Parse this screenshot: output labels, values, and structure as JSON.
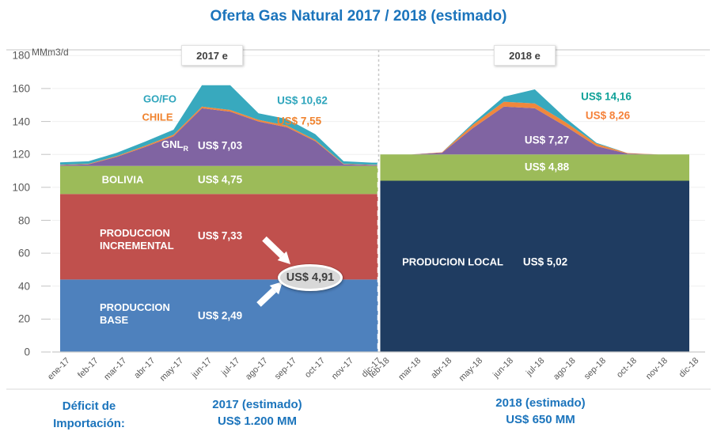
{
  "title": "Oferta Gas Natural 2017 / 2018 (estimado)",
  "y_axis": {
    "unit": "MMm3/d"
  },
  "colors": {
    "title_blue": "#1B74BC",
    "axis_text": "#595959",
    "grid": "#EFEFEF",
    "axis_line": "#C9C9C9",
    "divider_top": "#C8C8C8",
    "divider_dash": "#FFFFFF",
    "callout_bg": "#D8D8D8",
    "callout_text": "#3F3F3F",
    "teal_label_left": "#2EA5BC",
    "teal_label_right": "#0FA198",
    "orange_label_left": "#F0832E",
    "orange_label_right": "#F5823A"
  },
  "chart_data": {
    "type": "area",
    "subtype": "stacked",
    "title": "Oferta Gas Natural 2017 / 2018 (estimado)",
    "unit": "MMm3/d",
    "ylim": [
      0,
      180
    ],
    "ytick_step": 20,
    "grid": true,
    "panels": [
      {
        "tag": "2017 e",
        "x": [
          "ene-17",
          "feb-17",
          "mar-17",
          "abr-17",
          "may-17",
          "jun-17",
          "jul-17",
          "ago-17",
          "sep-17",
          "oct-17",
          "nov-17",
          "dic-17"
        ],
        "series": [
          {
            "key": "base",
            "name": "PRODUCCION BASE",
            "name_lines": [
              "PRODUCCION",
              "BASE"
            ],
            "price": "US$ 2,49",
            "color": "#4E81BD",
            "values": [
              44,
              44,
              44,
              44,
              44,
              44,
              44,
              44,
              44,
              44,
              44,
              44
            ]
          },
          {
            "key": "incremental",
            "name": "PRODUCCION INCREMENTAL",
            "name_lines": [
              "PRODUCCION",
              "INCREMENTAL"
            ],
            "price": "US$ 7,33",
            "color": "#C0504D",
            "values": [
              52,
              52,
              52,
              52,
              52,
              52,
              52,
              52,
              52,
              52,
              52,
              52
            ]
          },
          {
            "key": "bolivia",
            "name": "BOLIVIA",
            "price": "US$ 4,75",
            "color": "#9CBB59",
            "values": [
              17,
              17,
              17,
              17,
              17,
              17,
              17,
              17,
              17,
              17,
              17,
              17
            ]
          },
          {
            "key": "gnl",
            "name": "GNL",
            "name_sub": "R",
            "price": "US$ 7,03",
            "color": "#8064A2",
            "values": [
              0.5,
              1,
              5.5,
              11.5,
              18,
              35,
              33,
              27,
              23.5,
              15,
              1,
              0.5
            ]
          },
          {
            "key": "chile",
            "name": "CHILE",
            "price": "US$ 7,55",
            "color": "#F0873C",
            "values": [
              0.2,
              0.3,
              0.5,
              0.8,
              1,
              1,
              1,
              1,
              1,
              0.8,
              0.3,
              0.2
            ]
          },
          {
            "key": "gofo",
            "name": "GO/FO",
            "price": "US$ 10,62",
            "color": "#38A9BE",
            "values": [
              1.5,
              1.5,
              2,
              2.5,
              3,
              13,
              15,
              4,
              4,
              3.5,
              1.5,
              1.3
            ]
          }
        ],
        "callout": "US$ 4,91"
      },
      {
        "tag": "2018 e",
        "x": [
          "feb-18",
          "mar-18",
          "abr-18",
          "may-18",
          "jun-18",
          "jul-18",
          "ago-18",
          "sep-18",
          "oct-18",
          "nov-18",
          "dic-18"
        ],
        "series": [
          {
            "key": "local",
            "name": "PRODUCION LOCAL",
            "price": "US$ 5,02",
            "color": "#1F3C61",
            "values": [
              104,
              104,
              104,
              104,
              104,
              104,
              104,
              104,
              104,
              104,
              104
            ]
          },
          {
            "key": "bolivia",
            "name": "BOLIVIA",
            "price": "US$ 4,88",
            "color": "#9CBB59",
            "values": [
              16,
              16,
              16,
              16,
              16,
              16,
              16,
              16,
              16,
              16,
              16
            ]
          },
          {
            "key": "gnl",
            "name": "GNL",
            "price": "US$ 7,27",
            "color": "#8064A2",
            "values": [
              0,
              0,
              1,
              16,
              29,
              28,
              17,
              5,
              0.5,
              0,
              0
            ]
          },
          {
            "key": "chile",
            "name": "CHILE",
            "price": "US$ 8,26",
            "color": "#F0873C",
            "values": [
              0,
              0,
              0.3,
              2,
              3,
              3,
              2.5,
              1.5,
              0.3,
              0,
              0
            ]
          },
          {
            "key": "gofo",
            "name": "GO/FO",
            "price": "US$ 14,16",
            "color": "#38A9BE",
            "values": [
              0,
              0,
              0,
              1,
              3,
              8.5,
              2.5,
              0.5,
              0,
              0,
              0
            ]
          }
        ]
      }
    ]
  },
  "footer": {
    "deficit_line1": "Déficit de",
    "deficit_line2": "Importación:",
    "left_line1": "2017 (estimado)",
    "left_line2": "US$ 1.200 MM",
    "right_line1": "2018 (estimado)",
    "right_line2": "US$ 650 MM"
  }
}
